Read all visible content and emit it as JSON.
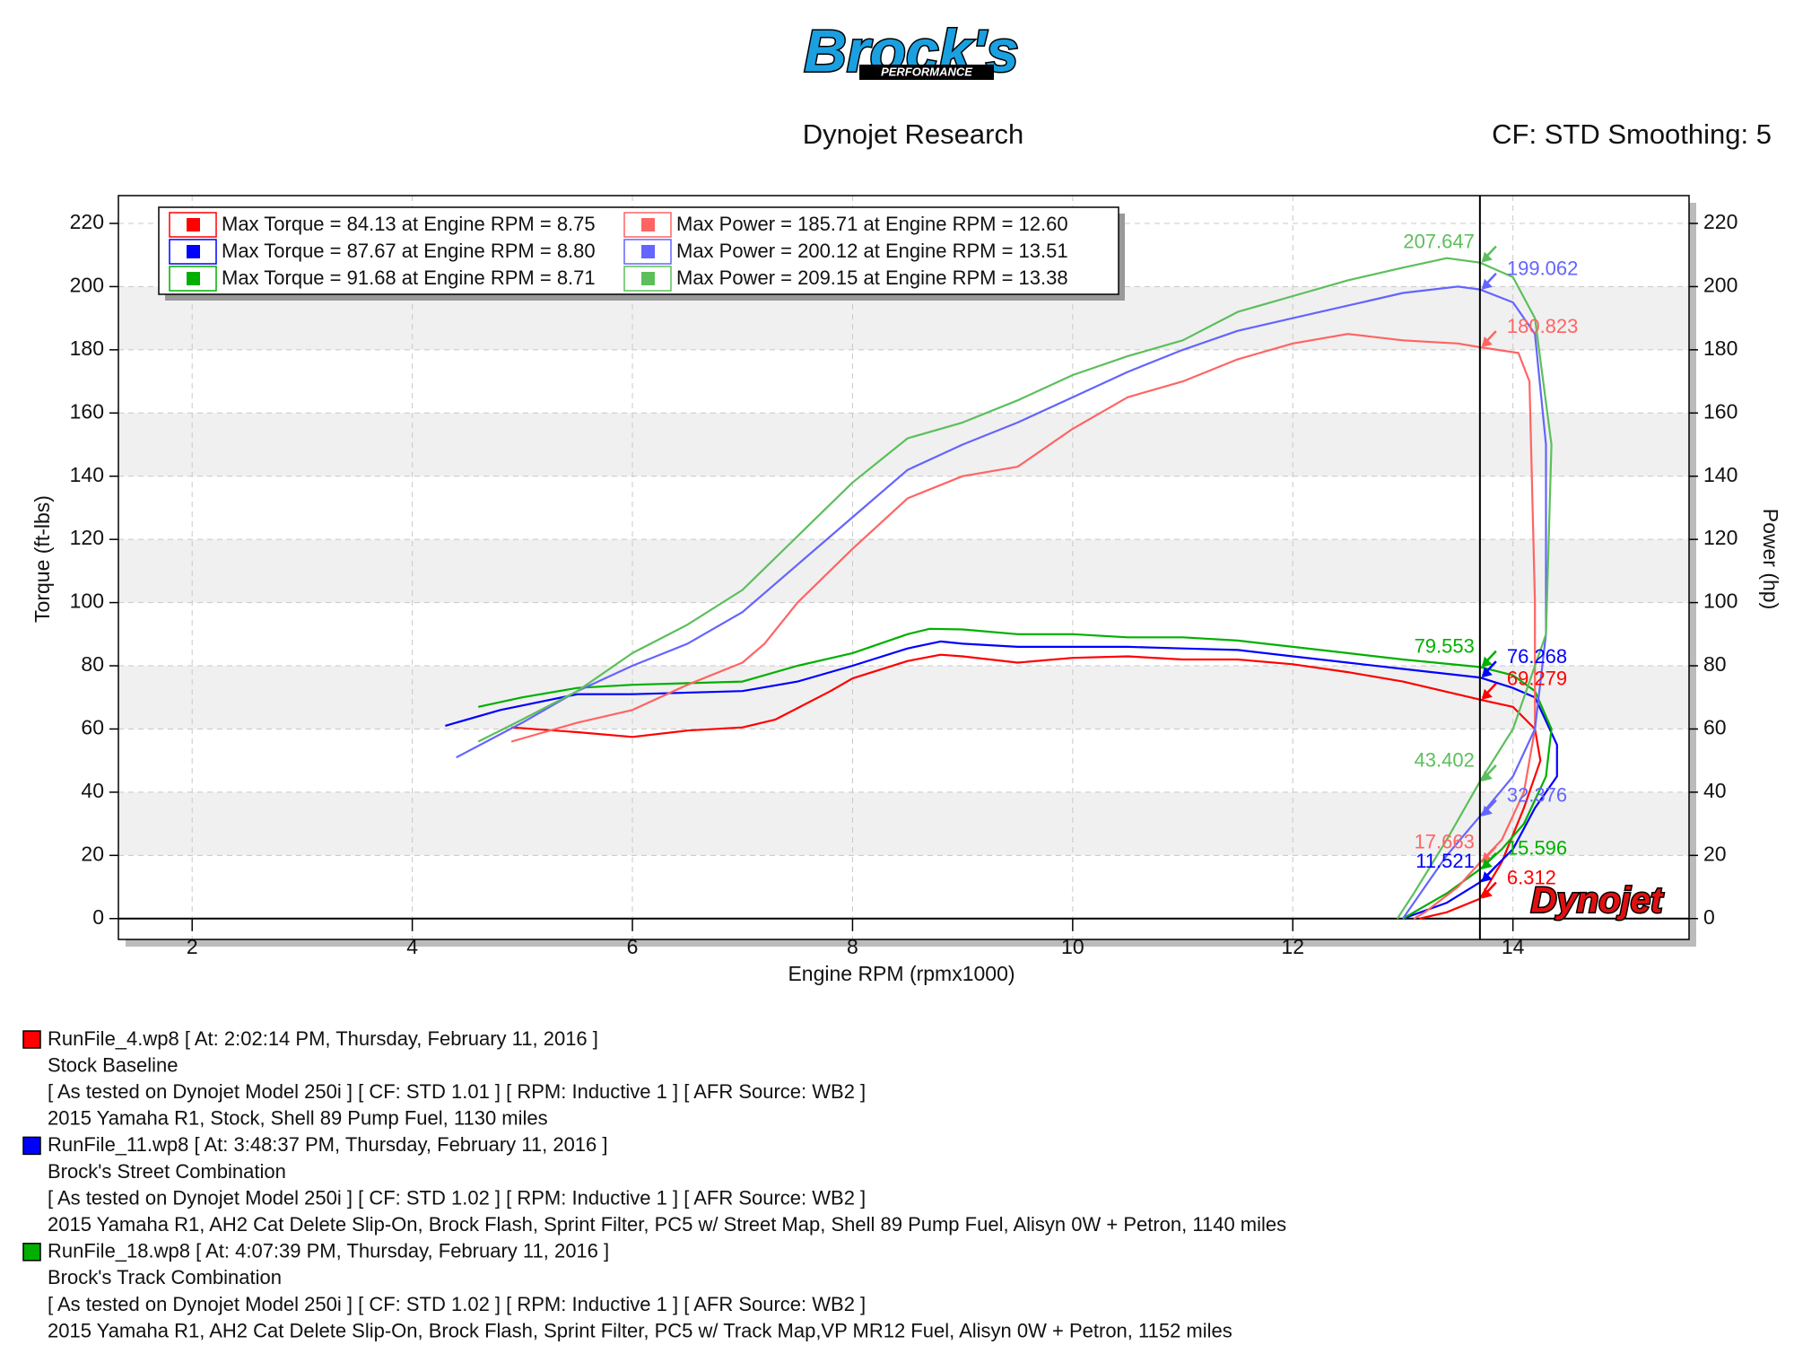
{
  "chart_data": {
    "type": "line",
    "logo": "Brock's",
    "logo_sub": "PERFORMANCE",
    "title": "Dynojet Research",
    "subtitle": "CF: STD Smoothing: 5",
    "watermark": "Dynojet",
    "x_label": "Engine RPM (rpmx1000)",
    "y_label": "Torque (ft-lbs)",
    "y2_label": "Power (hp)",
    "xlim": [
      1.33,
      15.6
    ],
    "xticks": [
      2,
      4,
      6,
      8,
      10,
      12,
      14
    ],
    "ylim": [
      -6.6,
      228.8
    ],
    "yticks": [
      0,
      20,
      40,
      60,
      80,
      100,
      120,
      140,
      160,
      180,
      200,
      220
    ],
    "y2lim": [
      -6.6,
      228.8
    ],
    "y2ticks": [
      0,
      20,
      40,
      60,
      80,
      100,
      120,
      140,
      160,
      180,
      200,
      220
    ],
    "grid": true,
    "cursor_x": 13.7,
    "series": [
      {
        "name": "Max Torque = 84.13 at Engine RPM = 8.75",
        "color": "#ff0000",
        "x": [
          4.9,
          5.5,
          6.0,
          6.5,
          7.0,
          7.3,
          7.8,
          8.0,
          8.5,
          8.8,
          9.0,
          9.5,
          10.0,
          10.5,
          11.0,
          11.5,
          12.0,
          12.5,
          13.0,
          13.7,
          14.0,
          14.2,
          14.25,
          14.1,
          13.9,
          13.7,
          13.4,
          13.15
        ],
        "values": [
          60.5,
          59,
          57.5,
          59.5,
          60.5,
          63,
          72,
          76,
          81.5,
          83.5,
          83,
          81,
          82.5,
          83,
          82,
          82,
          80.5,
          78,
          75,
          69.3,
          67,
          60,
          50,
          35,
          18,
          6.3,
          2,
          0
        ]
      },
      {
        "name": "Max Torque = 87.67 at Engine RPM = 8.80",
        "color": "#0000ff",
        "x": [
          4.3,
          4.8,
          5.5,
          6.0,
          7.0,
          7.5,
          8.0,
          8.5,
          8.8,
          9.0,
          9.5,
          10.0,
          10.5,
          11.0,
          11.5,
          12.0,
          12.5,
          13.0,
          13.7,
          14.0,
          14.2,
          14.4,
          14.4,
          14.2,
          14.0,
          13.7,
          13.4,
          13.0
        ],
        "values": [
          61,
          66,
          71,
          71,
          72,
          75,
          80,
          85.5,
          87.7,
          87,
          86,
          86,
          86,
          85.5,
          85,
          83,
          81,
          79,
          76.3,
          73,
          70,
          55,
          45,
          35,
          22,
          11.5,
          5,
          0
        ]
      },
      {
        "name": "Max Torque = 91.68 at Engine RPM = 8.71",
        "color": "#00b000",
        "x": [
          4.6,
          5.0,
          5.5,
          6.0,
          7.0,
          7.5,
          8.0,
          8.5,
          8.7,
          9.0,
          9.5,
          10.0,
          10.5,
          11.0,
          11.5,
          12.0,
          12.5,
          13.0,
          13.7,
          14.0,
          14.2,
          14.35,
          14.3,
          14.1,
          13.9,
          13.7,
          13.4,
          13.0
        ],
        "values": [
          67,
          70,
          73,
          74,
          75,
          80,
          84,
          90,
          91.7,
          91.5,
          90,
          90,
          89,
          89,
          88,
          86,
          84,
          82,
          79.6,
          77,
          72,
          60,
          45,
          30,
          22,
          15.6,
          8,
          0
        ]
      },
      {
        "name": "Max Power = 185.71 at Engine RPM = 12.60",
        "color": "#ff6464",
        "axis": "y2",
        "x": [
          4.9,
          5.5,
          6.0,
          6.5,
          7.0,
          7.2,
          7.5,
          8.0,
          8.5,
          9.0,
          9.5,
          10.0,
          10.5,
          11.0,
          11.5,
          12.0,
          12.5,
          13.0,
          13.5,
          13.7,
          14.05,
          14.15,
          14.2,
          14.2,
          14.1,
          13.9,
          13.7,
          13.5,
          13.2,
          13.1
        ],
        "values": [
          56,
          62,
          66,
          74,
          81,
          87,
          100,
          117,
          133,
          140,
          143,
          155,
          165,
          170,
          177,
          182,
          185,
          183,
          182,
          180.8,
          179,
          170,
          100,
          60,
          40,
          25,
          17.7,
          10,
          2,
          0
        ]
      },
      {
        "name": "Max Power = 200.12 at Engine RPM = 13.51",
        "color": "#6464ff",
        "axis": "y2",
        "x": [
          4.4,
          5.0,
          5.5,
          6.0,
          6.5,
          7.0,
          7.5,
          8.0,
          8.5,
          9.0,
          9.5,
          10.0,
          10.5,
          11.0,
          11.5,
          12.0,
          12.5,
          13.0,
          13.5,
          13.7,
          14.0,
          14.2,
          14.3,
          14.3,
          14.2,
          14.0,
          13.7,
          13.4,
          13.1,
          13.0
        ],
        "values": [
          51,
          62,
          72,
          80,
          87,
          97,
          112,
          127,
          142,
          150,
          157,
          165,
          173,
          180,
          186,
          190,
          194,
          198,
          200,
          199.1,
          195,
          185,
          150,
          90,
          60,
          45,
          32.4,
          20,
          5,
          0
        ]
      },
      {
        "name": "Max Power = 209.15 at Engine RPM = 13.38",
        "color": "#5cbf5c",
        "axis": "y2",
        "x": [
          4.6,
          5.0,
          5.5,
          6.0,
          6.5,
          7.0,
          7.5,
          8.0,
          8.5,
          9.0,
          9.5,
          10.0,
          10.5,
          11.0,
          11.5,
          12.0,
          12.5,
          13.0,
          13.4,
          13.7,
          14.0,
          14.2,
          14.35,
          14.3,
          14.0,
          13.7,
          13.4,
          13.1,
          12.95
        ],
        "values": [
          56,
          63,
          72,
          84,
          93,
          104,
          121,
          138,
          152,
          157,
          164,
          172,
          178,
          183,
          192,
          197,
          202,
          206,
          209,
          207.6,
          203,
          190,
          150,
          90,
          60,
          43.4,
          25,
          8,
          0
        ]
      }
    ],
    "cursor_readouts": [
      {
        "value": 207.647,
        "color": "#5cbf5c"
      },
      {
        "value": 199.062,
        "color": "#6464ff"
      },
      {
        "value": 180.823,
        "color": "#ff6464"
      },
      {
        "value": 79.553,
        "color": "#00b000"
      },
      {
        "value": 76.268,
        "color": "#0000ff"
      },
      {
        "value": 69.279,
        "color": "#ff0000"
      },
      {
        "value": 43.402,
        "color": "#5cbf5c"
      },
      {
        "value": 32.376,
        "color": "#6464ff"
      },
      {
        "value": 17.663,
        "color": "#ff6464"
      },
      {
        "value": 15.596,
        "color": "#00b000"
      },
      {
        "value": 11.521,
        "color": "#0000ff"
      },
      {
        "value": 6.312,
        "color": "#ff0000"
      }
    ],
    "runs": [
      {
        "color": "#ff0000",
        "lines": [
          "RunFile_4.wp8 [ At: 2:02:14 PM, Thursday, February 11, 2016 ]",
          "Stock Baseline",
          "[ As tested on Dynojet Model 250i ]  [ CF: STD 1.01 ]  [ RPM: Inductive 1 ]   [ AFR Source: WB2 ]",
          "2015 Yamaha R1, Stock, Shell 89 Pump Fuel, 1130 miles"
        ]
      },
      {
        "color": "#0000ff",
        "lines": [
          "RunFile_11.wp8 [ At: 3:48:37 PM, Thursday, February 11, 2016 ]",
          "Brock's Street Combination",
          "[ As tested on Dynojet Model 250i ]  [ CF: STD 1.02 ]  [ RPM: Inductive 1 ]   [ AFR Source: WB2 ]",
          "2015 Yamaha R1, AH2 Cat Delete Slip-On, Brock Flash, Sprint Filter, PC5 w/ Street Map, Shell 89 Pump Fuel, Alisyn 0W + Petron, 1140 miles"
        ]
      },
      {
        "color": "#00b000",
        "lines": [
          "RunFile_18.wp8 [ At: 4:07:39 PM, Thursday, February 11, 2016 ]",
          "Brock's Track Combination",
          "[ As tested on Dynojet Model 250i ]  [ CF: STD 1.02 ]  [ RPM: Inductive 1 ]   [ AFR Source: WB2 ]",
          "2015 Yamaha R1, AH2 Cat Delete Slip-On, Brock Flash, Sprint Filter, PC5 w/ Track Map,VP MR12 Fuel,  Alisyn 0W + Petron, 1152 miles"
        ]
      }
    ]
  }
}
